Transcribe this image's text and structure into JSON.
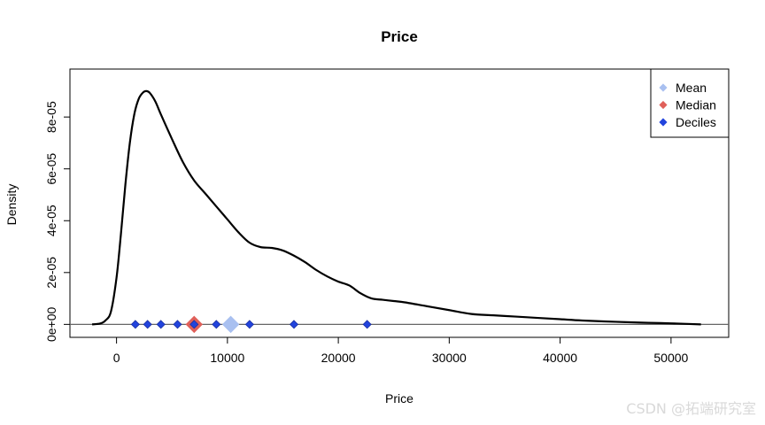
{
  "chart_data": {
    "type": "line",
    "title": "Price",
    "xlabel": "Price",
    "ylabel": "Density",
    "xlim": [
      -4200,
      55200
    ],
    "ylim": [
      -5e-06,
      9.85e-05
    ],
    "x_ticks": [
      0,
      10000,
      20000,
      30000,
      40000,
      50000
    ],
    "x_tick_labels": [
      "0",
      "10000",
      "20000",
      "30000",
      "40000",
      "50000"
    ],
    "y_ticks": [
      0,
      2e-05,
      4e-05,
      6e-05,
      8e-05
    ],
    "y_tick_labels": [
      "0e+00",
      "2e-05",
      "4e-05",
      "6e-05",
      "8e-05"
    ],
    "density_curve": {
      "x": [
        -2200,
        -1500,
        -1000,
        -500,
        0,
        400,
        800,
        1200,
        1600,
        2000,
        2400,
        2700,
        3000,
        3500,
        4000,
        5000,
        6000,
        7000,
        8000,
        9000,
        10000,
        11000,
        12000,
        13000,
        14000,
        15000,
        16000,
        17000,
        18000,
        19000,
        20000,
        21000,
        22000,
        23000,
        24000,
        25000,
        26000,
        28000,
        30000,
        32000,
        34000,
        36000,
        38000,
        40000,
        42000,
        45000,
        48000,
        50000,
        52700
      ],
      "y": [
        0,
        3e-07,
        1.5e-06,
        5e-06,
        1.8e-05,
        3.5e-05,
        5.4e-05,
        7e-05,
        8.1e-05,
        8.7e-05,
        8.95e-05,
        9e-05,
        8.93e-05,
        8.6e-05,
        8.1e-05,
        7.15e-05,
        6.25e-05,
        5.55e-05,
        5.05e-05,
        4.55e-05,
        4.05e-05,
        3.55e-05,
        3.15e-05,
        2.98e-05,
        2.95e-05,
        2.85e-05,
        2.65e-05,
        2.4e-05,
        2.1e-05,
        1.85e-05,
        1.65e-05,
        1.5e-05,
        1.2e-05,
        1e-05,
        9.5e-06,
        9e-06,
        8.5e-06,
        7e-06,
        5.5e-06,
        4e-06,
        3.5e-06,
        3e-06,
        2.5e-06,
        2e-06,
        1.5e-06,
        1e-06,
        6e-07,
        4e-07,
        0
      ]
    },
    "mean": 10300,
    "median": 7000,
    "deciles": [
      1700,
      2800,
      4000,
      5500,
      7000,
      9000,
      12000,
      16000,
      22600
    ],
    "legend": {
      "position": "top-right",
      "entries": [
        {
          "label": "Mean",
          "color": "#a9c0f0"
        },
        {
          "label": "Median",
          "color": "#e0605a"
        },
        {
          "label": "Deciles",
          "color": "#2244dd"
        }
      ]
    },
    "colors": {
      "curve": "#000000",
      "mean": "#a9c0f0",
      "median": "#e0605a",
      "deciles": "#2244dd"
    }
  },
  "watermark": "CSDN @拓端研究室"
}
